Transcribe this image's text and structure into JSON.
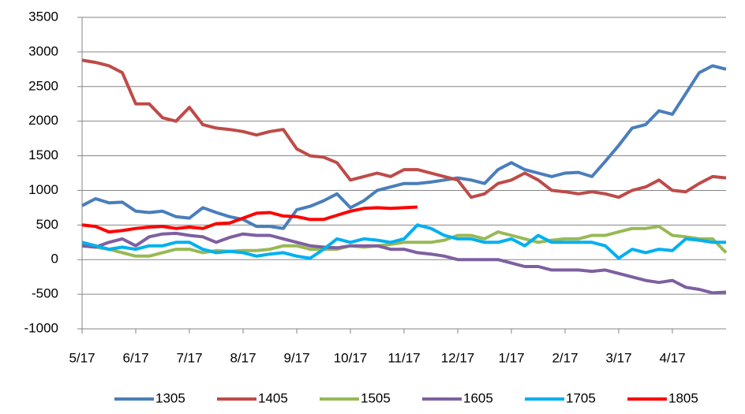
{
  "chart_data": {
    "type": "line",
    "categories": [
      "5/17",
      null,
      null,
      null,
      "6/17",
      null,
      null,
      null,
      "7/17",
      null,
      null,
      null,
      "8/17",
      null,
      null,
      null,
      "9/17",
      null,
      null,
      null,
      "10/17",
      null,
      null,
      null,
      "11/17",
      null,
      null,
      null,
      "12/17",
      null,
      null,
      null,
      "1/17",
      null,
      null,
      null,
      "2/17",
      null,
      null,
      null,
      "3/17",
      null,
      null,
      null,
      "4/17",
      null,
      null,
      null,
      null
    ],
    "ylim": [
      -1000,
      3500
    ],
    "yticks": [
      -1000,
      -500,
      0,
      500,
      1000,
      1500,
      2000,
      2500,
      3000,
      3500
    ],
    "grid": true,
    "legend": "bottom",
    "series": [
      {
        "name": "1305",
        "color": "#4a7ebb",
        "values": [
          780,
          880,
          820,
          830,
          700,
          680,
          700,
          620,
          600,
          750,
          680,
          620,
          580,
          480,
          480,
          450,
          720,
          770,
          850,
          950,
          750,
          850,
          1000,
          1050,
          1100,
          1100,
          1120,
          1150,
          1180,
          1150,
          1100,
          1300,
          1400,
          1300,
          1250,
          1200,
          1250,
          1260,
          1200,
          1420,
          1650,
          1900,
          1950,
          2150,
          2100,
          2400,
          2700,
          2800,
          2750
        ]
      },
      {
        "name": "1405",
        "color": "#be4b48",
        "values": [
          2880,
          2850,
          2800,
          2700,
          2250,
          2250,
          2050,
          2000,
          2200,
          1950,
          1900,
          1880,
          1850,
          1800,
          1850,
          1880,
          1600,
          1500,
          1480,
          1400,
          1150,
          1200,
          1250,
          1200,
          1300,
          1300,
          1250,
          1200,
          1150,
          900,
          950,
          1100,
          1150,
          1250,
          1150,
          1000,
          980,
          950,
          980,
          950,
          900,
          1000,
          1050,
          1150,
          1000,
          980,
          1100,
          1200,
          1180
        ]
      },
      {
        "name": "1505",
        "color": "#98b954",
        "values": [
          200,
          180,
          150,
          100,
          50,
          50,
          100,
          150,
          150,
          100,
          130,
          120,
          130,
          130,
          150,
          200,
          200,
          150,
          150,
          150,
          200,
          180,
          200,
          220,
          250,
          250,
          250,
          280,
          350,
          350,
          300,
          400,
          350,
          300,
          250,
          280,
          300,
          300,
          350,
          350,
          400,
          450,
          450,
          480,
          350,
          330,
          300,
          300,
          100
        ]
      },
      {
        "name": "1605",
        "color": "#7d60a0",
        "values": [
          200,
          180,
          250,
          300,
          200,
          330,
          370,
          380,
          350,
          330,
          250,
          320,
          370,
          350,
          350,
          300,
          250,
          200,
          180,
          170,
          200,
          200,
          200,
          150,
          150,
          100,
          80,
          50,
          0,
          0,
          0,
          0,
          -50,
          -100,
          -100,
          -150,
          -150,
          -150,
          -170,
          -150,
          -200,
          -250,
          -300,
          -330,
          -300,
          -400,
          -430,
          -480,
          -470
        ]
      },
      {
        "name": "1705",
        "color": "#00b0f0",
        "values": [
          250,
          200,
          150,
          180,
          150,
          200,
          200,
          250,
          250,
          150,
          100,
          120,
          100,
          50,
          80,
          100,
          50,
          20,
          150,
          300,
          250,
          300,
          280,
          250,
          300,
          500,
          450,
          350,
          300,
          300,
          250,
          250,
          300,
          200,
          350,
          250,
          250,
          250,
          250,
          200,
          20,
          150,
          100,
          150,
          130,
          300,
          280,
          250,
          250
        ]
      },
      {
        "name": "1805",
        "color": "#ff0000",
        "values": [
          500,
          480,
          400,
          420,
          450,
          470,
          480,
          450,
          470,
          450,
          520,
          530,
          600,
          670,
          680,
          630,
          620,
          580,
          580,
          640,
          700,
          740,
          750,
          740,
          750,
          760,
          null,
          null,
          null,
          null,
          null,
          null,
          null,
          null,
          null,
          null,
          null,
          null,
          null,
          null,
          null,
          null,
          null,
          null,
          null,
          null,
          null,
          null,
          null
        ]
      }
    ]
  }
}
